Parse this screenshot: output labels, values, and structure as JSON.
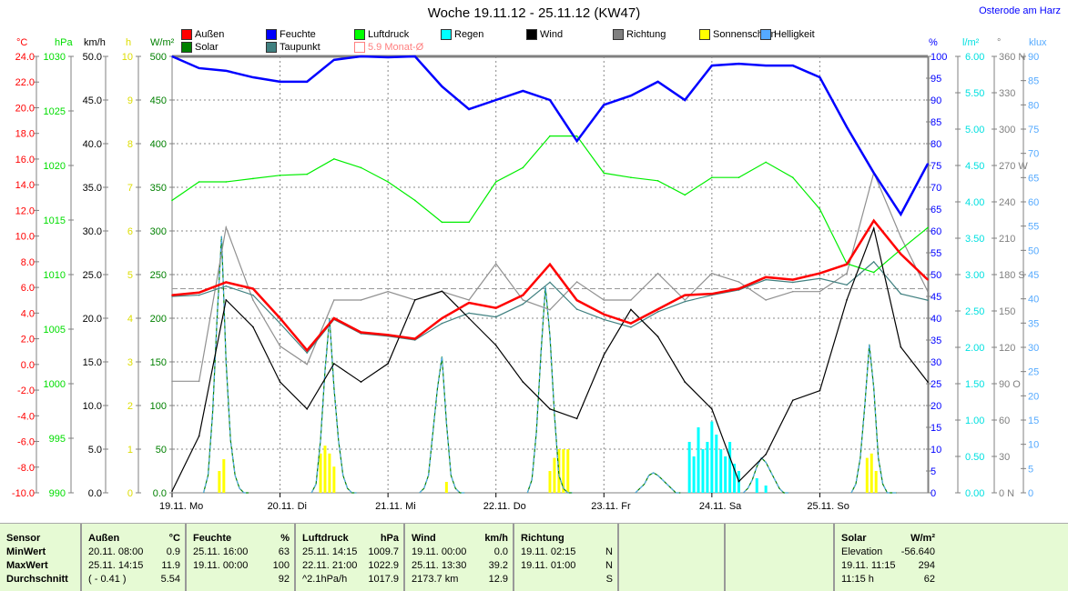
{
  "title": "Woche 19.11.12 - 25.11.12 (KW47)",
  "location": "Osterode am Harz",
  "legend": [
    {
      "label": "Außen",
      "color": "#ff0000"
    },
    {
      "label": "Feuchte",
      "color": "#0000ff"
    },
    {
      "label": "Luftdruck",
      "color": "#00ff00"
    },
    {
      "label": "Regen",
      "color": "#00ffff"
    },
    {
      "label": "Wind",
      "color": "#000000"
    },
    {
      "label": "Richtung",
      "color": "#808080"
    },
    {
      "label": "Sonnenschein",
      "color": "#ffff00"
    },
    {
      "label": "Helligkeit",
      "color": "#55aaff"
    },
    {
      "label": "Solar",
      "color": "#008000"
    },
    {
      "label": "Taupunkt",
      "color": "#408080"
    },
    {
      "label": "5.9 Monat-Ø",
      "color": "#ff8080"
    }
  ],
  "chart_data": {
    "type": "line",
    "x_unit": "hours since 19.11. 00:00",
    "x": [
      0,
      6,
      12,
      18,
      24,
      30,
      36,
      42,
      48,
      54,
      60,
      66,
      72,
      78,
      84,
      90,
      96,
      102,
      108,
      114,
      120,
      126,
      132,
      138,
      144,
      150,
      156,
      162,
      168
    ],
    "x_ticks": [
      {
        "label": "19.11.",
        "day": "Mo"
      },
      {
        "label": "20.11.",
        "day": "Di"
      },
      {
        "label": "21.11.",
        "day": "Mi"
      },
      {
        "label": "22.11.",
        "day": "Do"
      },
      {
        "label": "23.11.",
        "day": "Fr"
      },
      {
        "label": "24.11.",
        "day": "Sa"
      },
      {
        "label": "25.11.",
        "day": "So"
      }
    ],
    "axes": {
      "temp": {
        "unit": "°C",
        "min": -10,
        "max": 24,
        "ticks": [
          "-10.0",
          "-8.0",
          "-6.0",
          "-4.0",
          "-2.0",
          "0.0",
          "2.0",
          "4.0",
          "6.0",
          "8.0",
          "10.0",
          "12.0",
          "14.0",
          "16.0",
          "18.0",
          "20.0",
          "22.0",
          "24.0"
        ],
        "color": "#ff0000"
      },
      "pressure": {
        "unit": "hPa",
        "min": 990,
        "max": 1030,
        "ticks": [
          "990",
          "995",
          "1000",
          "1005",
          "1010",
          "1015",
          "1020",
          "1025",
          "1030"
        ],
        "color": "#00dd00"
      },
      "wind": {
        "unit": "km/h",
        "min": 0,
        "max": 50,
        "ticks": [
          "0.0",
          "5.0",
          "10.0",
          "15.0",
          "20.0",
          "25.0",
          "30.0",
          "35.0",
          "40.0",
          "45.0",
          "50.0"
        ],
        "color": "#000000"
      },
      "sunshine": {
        "unit": "h",
        "min": 0,
        "max": 10,
        "ticks": [
          "0",
          "1",
          "2",
          "3",
          "4",
          "5",
          "6",
          "7",
          "8",
          "9",
          "10"
        ],
        "color": "#dddd00"
      },
      "solar": {
        "unit": "W/m²",
        "min": 0,
        "max": 500,
        "ticks": [
          "0.0",
          "50",
          "100",
          "150",
          "200",
          "250",
          "300",
          "350",
          "400",
          "450",
          "500"
        ],
        "color": "#008000"
      },
      "humidity": {
        "unit": "%",
        "min": 0,
        "max": 100,
        "ticks": [
          "0",
          "5",
          "10",
          "15",
          "20",
          "25",
          "30",
          "35",
          "40",
          "45",
          "50",
          "55",
          "60",
          "65",
          "70",
          "75",
          "80",
          "85",
          "90",
          "95",
          "100"
        ],
        "color": "#0000ff"
      },
      "rain": {
        "unit": "l/m²",
        "min": 0,
        "max": 6,
        "ticks": [
          "0.00",
          "0.50",
          "1.00",
          "1.50",
          "2.00",
          "2.50",
          "3.00",
          "3.50",
          "4.00",
          "4.50",
          "5.00",
          "5.50",
          "6.00"
        ],
        "color": "#00e0e0"
      },
      "direction": {
        "unit": "°",
        "min": 0,
        "max": 360,
        "ticks": [
          "0   N",
          "30",
          "60",
          "90   O",
          "120",
          "150",
          "180 S",
          "210",
          "240",
          "270 W",
          "300",
          "330",
          "360 N"
        ],
        "color": "#808080"
      },
      "brightness": {
        "unit": "klux",
        "min": 0,
        "max": 90,
        "ticks": [
          "0",
          "5",
          "10",
          "15",
          "20",
          "25",
          "30",
          "35",
          "40",
          "45",
          "50",
          "55",
          "60",
          "65",
          "70",
          "75",
          "80",
          "85",
          "90"
        ],
        "color": "#55aaff"
      }
    },
    "series": [
      {
        "name": "Außen",
        "axis": "temp",
        "color": "#ff0000",
        "values": [
          5.4,
          5.6,
          6.4,
          5.9,
          3.6,
          1.1,
          3.6,
          2.5,
          2.3,
          2.0,
          3.6,
          4.8,
          4.4,
          5.4,
          7.8,
          5.0,
          3.9,
          3.2,
          4.3,
          5.4,
          5.5,
          5.9,
          6.8,
          6.6,
          7.1,
          7.8,
          11.2,
          8.6,
          6.6
        ]
      },
      {
        "name": "Taupunkt",
        "axis": "temp",
        "color": "#408080",
        "values": [
          5.3,
          5.4,
          6.1,
          5.4,
          3.2,
          0.9,
          3.5,
          2.4,
          2.2,
          1.9,
          3.2,
          4.0,
          3.7,
          4.7,
          6.4,
          4.3,
          3.5,
          2.9,
          4.1,
          4.9,
          5.4,
          5.8,
          6.6,
          6.4,
          6.7,
          6.2,
          8.0,
          5.5,
          5.0
        ]
      },
      {
        "name": "Feuchte",
        "axis": "humidity",
        "color": "#0000ff",
        "values": [
          100,
          97.3,
          96.7,
          95.2,
          94.2,
          94.2,
          99.2,
          100,
          99.8,
          100,
          93.1,
          87.9,
          90,
          92.1,
          90,
          80.6,
          88.9,
          91,
          94.2,
          90,
          97.9,
          98.3,
          97.9,
          97.9,
          95.2,
          83.8,
          73.3,
          63.8,
          75.4
        ]
      },
      {
        "name": "Luftdruck",
        "axis": "pressure",
        "color": "#00ee00",
        "values": [
          1016.8,
          1018.5,
          1018.5,
          1018.8,
          1019.1,
          1019.2,
          1020.6,
          1019.8,
          1018.5,
          1016.8,
          1014.8,
          1014.8,
          1018.5,
          1019.8,
          1022.7,
          1022.7,
          1019.3,
          1018.9,
          1018.6,
          1017.3,
          1018.9,
          1018.9,
          1020.3,
          1018.9,
          1016.0,
          1011.0,
          1010.2,
          1012.3,
          1014.3
        ]
      },
      {
        "name": "Wind",
        "axis": "wind",
        "color": "#000000",
        "values": [
          0.2,
          6.5,
          22.1,
          19.0,
          12.7,
          9.6,
          14.8,
          12.7,
          14.8,
          22.1,
          23.1,
          20.0,
          16.9,
          12.7,
          9.6,
          8.5,
          15.8,
          21.0,
          17.9,
          12.7,
          9.6,
          1.3,
          4.4,
          10.6,
          11.7,
          22.1,
          30.3,
          16.7,
          12.7
        ]
      },
      {
        "name": "Richtung",
        "axis": "direction",
        "color": "#909090",
        "values": [
          92,
          92,
          219,
          159,
          121,
          106,
          159,
          159,
          166,
          159,
          166,
          159,
          189,
          159,
          151,
          174,
          159,
          159,
          181,
          159,
          181,
          174,
          159,
          166,
          166,
          181,
          264,
          211,
          166
        ]
      }
    ],
    "solar": {
      "axis": "solar",
      "color": "#008000",
      "hours": [
        7,
        8,
        9,
        10,
        11,
        12,
        13,
        14,
        15,
        16,
        17
      ],
      "days": [
        [
          0,
          20,
          90,
          200,
          294,
          150,
          60,
          20,
          5,
          0,
          0
        ],
        [
          0,
          10,
          60,
          140,
          200,
          120,
          60,
          20,
          5,
          0,
          0
        ],
        [
          0,
          5,
          20,
          70,
          120,
          156,
          80,
          20,
          5,
          0,
          0
        ],
        [
          0,
          15,
          70,
          160,
          236,
          180,
          90,
          20,
          5,
          0,
          0
        ],
        [
          0,
          5,
          10,
          20,
          23,
          20,
          15,
          10,
          5,
          0,
          0
        ],
        [
          0,
          5,
          15,
          30,
          40,
          35,
          25,
          15,
          5,
          0,
          0
        ],
        [
          0,
          10,
          40,
          100,
          170,
          120,
          40,
          10,
          0,
          0,
          0
        ]
      ]
    },
    "rain": {
      "axis": "rain",
      "color": "#00ffff",
      "bars": [
        [
          115,
          0.7
        ],
        [
          116,
          0.5
        ],
        [
          117,
          0.9
        ],
        [
          118,
          0.6
        ],
        [
          119,
          0.7
        ],
        [
          120,
          0.98
        ],
        [
          121,
          0.8
        ],
        [
          122,
          0.6
        ],
        [
          123,
          0.5
        ],
        [
          124,
          0.7
        ],
        [
          125,
          0.4
        ],
        [
          126,
          0.3
        ],
        [
          130,
          0.2
        ],
        [
          132,
          0.1
        ]
      ]
    },
    "sunshine": {
      "axis": "sunshine",
      "color": "#ffff00",
      "bars": [
        [
          10.5,
          0.5
        ],
        [
          11.5,
          0.77
        ],
        [
          33,
          0.9
        ],
        [
          34,
          1.08
        ],
        [
          35,
          0.9
        ],
        [
          36,
          0.6
        ],
        [
          61,
          0.25
        ],
        [
          84,
          0.5
        ],
        [
          85,
          0.8
        ],
        [
          86,
          1.0
        ],
        [
          87,
          1.0
        ],
        [
          88,
          1.0
        ],
        [
          154.5,
          0.8
        ],
        [
          155.5,
          0.9
        ],
        [
          156.5,
          0.5
        ]
      ]
    },
    "month_avg": {
      "axis": "temp",
      "value": 5.9,
      "label": "5.9 Monat-Ø",
      "color": "#ff8080"
    }
  },
  "table": {
    "columns": [
      {
        "header": "Sensor",
        "unit": "",
        "rows": [
          [
            "MinWert",
            ""
          ],
          [
            "MaxWert",
            ""
          ],
          [
            "Durchschnitt",
            ""
          ]
        ]
      },
      {
        "header": "Außen",
        "unit": "°C",
        "rows": [
          [
            "20.11.  08:00",
            "0.9"
          ],
          [
            "25.11.  14:15",
            "11.9"
          ],
          [
            "( - 0.41 )",
            "5.54"
          ]
        ]
      },
      {
        "header": "Feuchte",
        "unit": "%",
        "rows": [
          [
            "25.11.  16:00",
            "63"
          ],
          [
            "19.11.  00:00",
            "100"
          ],
          [
            "",
            "92"
          ]
        ]
      },
      {
        "header": "Luftdruck",
        "unit": "hPa",
        "rows": [
          [
            "25.11.  14:15",
            "1009.7"
          ],
          [
            "22.11.  21:00",
            "1022.9"
          ],
          [
            "^2.1hPa/h",
            "1017.9"
          ]
        ]
      },
      {
        "header": "Wind",
        "unit": "km/h",
        "rows": [
          [
            "19.11.  00:00",
            "0.0"
          ],
          [
            "25.11.  13:30",
            "39.2"
          ],
          [
            "2173.7 km",
            "12.9"
          ]
        ]
      },
      {
        "header": "Richtung",
        "unit": "",
        "rows": [
          [
            "19.11.  02:15",
            "N"
          ],
          [
            "19.11.  01:00",
            "N"
          ],
          [
            "",
            "S"
          ]
        ]
      },
      {
        "header": "",
        "unit": "",
        "rows": [
          [
            "",
            ""
          ],
          [
            "",
            ""
          ],
          [
            "",
            ""
          ]
        ]
      },
      {
        "header": "",
        "unit": "",
        "rows": [
          [
            "",
            ""
          ],
          [
            "",
            ""
          ],
          [
            "",
            ""
          ]
        ]
      },
      {
        "header": "Solar",
        "unit": "W/m²",
        "rows": [
          [
            "Elevation",
            "-56.640"
          ],
          [
            "19.11.  11:15",
            "294"
          ],
          [
            "11:15 h",
            "62"
          ]
        ]
      }
    ]
  }
}
